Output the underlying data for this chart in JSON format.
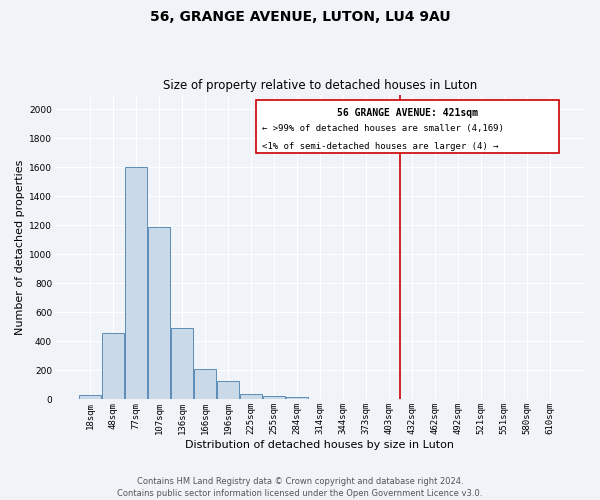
{
  "title": "56, GRANGE AVENUE, LUTON, LU4 9AU",
  "subtitle": "Size of property relative to detached houses in Luton",
  "xlabel": "Distribution of detached houses by size in Luton",
  "ylabel": "Number of detached properties",
  "bar_labels": [
    "18sqm",
    "48sqm",
    "77sqm",
    "107sqm",
    "136sqm",
    "166sqm",
    "196sqm",
    "225sqm",
    "255sqm",
    "284sqm",
    "314sqm",
    "344sqm",
    "373sqm",
    "403sqm",
    "432sqm",
    "462sqm",
    "492sqm",
    "521sqm",
    "551sqm",
    "580sqm",
    "610sqm"
  ],
  "bar_heights": [
    30,
    460,
    1600,
    1190,
    490,
    210,
    125,
    40,
    25,
    15,
    0,
    0,
    0,
    0,
    0,
    0,
    0,
    0,
    0,
    0,
    0
  ],
  "bar_color": "#c9d9e8",
  "bar_edge_color": "#5b8db8",
  "vline_color": "#cc0000",
  "annotation_title": "56 GRANGE AVENUE: 421sqm",
  "annotation_line1": "← >99% of detached houses are smaller (4,169)",
  "annotation_line2": "<1% of semi-detached houses are larger (4) →",
  "annotation_box_color": "#cc0000",
  "ylim": [
    0,
    2100
  ],
  "yticks": [
    0,
    200,
    400,
    600,
    800,
    1000,
    1200,
    1400,
    1600,
    1800,
    2000
  ],
  "footer": "Contains HM Land Registry data © Crown copyright and database right 2024.\nContains public sector information licensed under the Open Government Licence v3.0.",
  "bg_color": "#f0f4f8",
  "grid_color": "#ffffff",
  "title_fontsize": 10,
  "subtitle_fontsize": 8.5,
  "axis_label_fontsize": 8,
  "tick_fontsize": 6.5,
  "footer_fontsize": 6,
  "annotation_fontsize_title": 7,
  "annotation_fontsize_body": 6.5
}
